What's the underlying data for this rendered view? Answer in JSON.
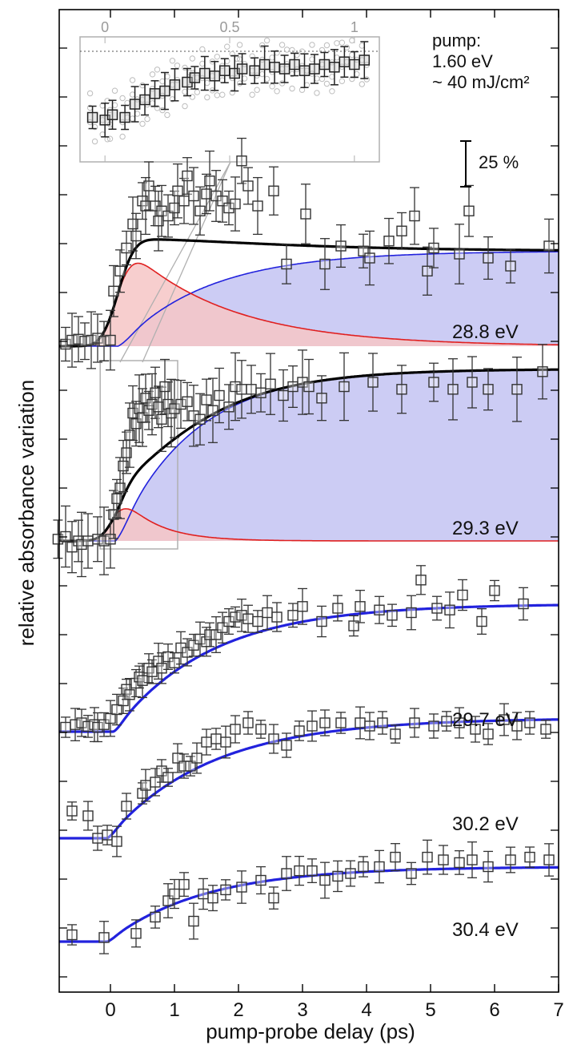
{
  "chart_data": {
    "type": "scatter",
    "xlabel": "pump-probe delay (ps)",
    "ylabel": "relative absorbance variation",
    "xlim": [
      -0.8,
      7
    ],
    "x_ticks": [
      "0",
      "1",
      "2",
      "3",
      "4",
      "5",
      "6",
      "7"
    ],
    "scale_bar_label": "25 %",
    "scale_bar_value_percent": 25,
    "pump_info": [
      "pump:",
      "1.60 eV",
      "~ 40 mJ/cm²"
    ],
    "colors": {
      "data": "#333333",
      "total_fit": "#000000",
      "fast_component": "#e02020",
      "fast_fill": "#f6c6c6",
      "slow_component": "#2222dd",
      "slow_fill": "#c9c9f3",
      "inset_frame": "#b0b0b0"
    },
    "series": [
      {
        "label": "28.8 eV",
        "fit": "two-component",
        "offset": 0,
        "t_rise": 0.12,
        "sigma": 0.2,
        "fast_amplitude": 1.07,
        "fast_decay": 1.6,
        "slow_amplitude": 0.95,
        "slow_time": 1.4,
        "points": [
          [
            -0.7,
            0.02
          ],
          [
            -0.6,
            0.06
          ],
          [
            -0.5,
            0.07
          ],
          [
            -0.4,
            0.05
          ],
          [
            -0.3,
            0.06
          ],
          [
            -0.2,
            0.08
          ],
          [
            -0.1,
            0.05
          ],
          [
            0.0,
            0.06
          ],
          [
            0.05,
            0.55
          ],
          [
            0.15,
            0.75
          ],
          [
            0.25,
            0.98
          ],
          [
            0.35,
            1.22
          ],
          [
            0.4,
            1.1
          ],
          [
            0.5,
            1.45
          ],
          [
            0.55,
            1.4
          ],
          [
            0.6,
            1.6
          ],
          [
            0.7,
            1.4
          ],
          [
            0.75,
            1.25
          ],
          [
            0.8,
            1.35
          ],
          [
            0.9,
            1.3
          ],
          [
            1.0,
            1.38
          ],
          [
            1.05,
            1.55
          ],
          [
            1.15,
            1.45
          ],
          [
            1.2,
            1.7
          ],
          [
            1.3,
            1.5
          ],
          [
            1.4,
            1.35
          ],
          [
            1.5,
            1.52
          ],
          [
            1.55,
            1.65
          ],
          [
            1.65,
            1.5
          ],
          [
            1.75,
            1.45
          ],
          [
            1.85,
            1.38
          ],
          [
            1.95,
            1.42
          ],
          [
            2.05,
            1.85
          ],
          [
            2.15,
            1.6
          ],
          [
            2.3,
            1.4
          ],
          [
            2.55,
            1.55
          ],
          [
            2.75,
            0.82
          ],
          [
            3.05,
            1.32
          ],
          [
            3.35,
            0.82
          ],
          [
            3.6,
            1.0
          ],
          [
            3.95,
            0.95
          ],
          [
            4.05,
            0.88
          ],
          [
            4.35,
            1.05
          ],
          [
            4.55,
            1.15
          ],
          [
            4.75,
            1.3
          ],
          [
            4.95,
            0.75
          ],
          [
            5.05,
            0.98
          ],
          [
            5.45,
            0.92
          ],
          [
            5.6,
            1.35
          ],
          [
            5.9,
            0.88
          ],
          [
            6.25,
            0.8
          ],
          [
            6.85,
            1.0
          ]
        ]
      },
      {
        "label": "29.3 eV",
        "fit": "two-component",
        "offset": 0,
        "t_rise": 0.08,
        "sigma": 0.18,
        "fast_amplitude": 0.6,
        "fast_decay": 0.55,
        "slow_amplitude": 1.95,
        "slow_time": 1.2,
        "points": [
          [
            -0.82,
            0.02
          ],
          [
            -0.7,
            0.05
          ],
          [
            -0.6,
            -0.07
          ],
          [
            -0.5,
            0.0
          ],
          [
            -0.45,
            -0.04
          ],
          [
            -0.35,
            0.0
          ],
          [
            -0.2,
            0.02
          ],
          [
            -0.1,
            0.0
          ],
          [
            0.0,
            0.02
          ],
          [
            0.05,
            0.3
          ],
          [
            0.1,
            0.48
          ],
          [
            0.15,
            0.6
          ],
          [
            0.2,
            0.85
          ],
          [
            0.25,
            1.0
          ],
          [
            0.3,
            1.2
          ],
          [
            0.35,
            1.45
          ],
          [
            0.4,
            1.33
          ],
          [
            0.45,
            1.5
          ],
          [
            0.5,
            1.4
          ],
          [
            0.55,
            1.62
          ],
          [
            0.6,
            1.48
          ],
          [
            0.65,
            1.55
          ],
          [
            0.7,
            1.68
          ],
          [
            0.75,
            1.52
          ],
          [
            0.8,
            1.38
          ],
          [
            0.85,
            1.75
          ],
          [
            0.9,
            1.55
          ],
          [
            0.95,
            1.45
          ],
          [
            1.0,
            1.5
          ],
          [
            1.1,
            1.55
          ],
          [
            1.2,
            1.58
          ],
          [
            1.3,
            1.42
          ],
          [
            1.4,
            1.38
          ],
          [
            1.5,
            1.6
          ],
          [
            1.6,
            1.48
          ],
          [
            1.7,
            1.65
          ],
          [
            1.85,
            1.52
          ],
          [
            1.95,
            1.75
          ],
          [
            2.05,
            1.72
          ],
          [
            2.2,
            1.72
          ],
          [
            2.35,
            1.68
          ],
          [
            2.5,
            1.78
          ],
          [
            2.7,
            1.65
          ],
          [
            2.85,
            1.75
          ],
          [
            3.0,
            1.8
          ],
          [
            3.1,
            1.75
          ],
          [
            3.3,
            1.62
          ],
          [
            3.65,
            1.75
          ],
          [
            4.1,
            1.8
          ],
          [
            4.55,
            1.72
          ],
          [
            5.05,
            1.8
          ],
          [
            5.35,
            1.72
          ],
          [
            5.65,
            1.8
          ],
          [
            5.9,
            1.72
          ],
          [
            6.35,
            1.72
          ],
          [
            6.75,
            1.92
          ]
        ]
      },
      {
        "label": "29.7 eV",
        "fit": "single",
        "offset": 0,
        "t_rise": 0.05,
        "sigma": 0.12,
        "slow_amplitude": 1.45,
        "slow_time": 1.5,
        "points": [
          [
            -0.7,
            0.05
          ],
          [
            -0.55,
            0.08
          ],
          [
            -0.45,
            0.1
          ],
          [
            -0.35,
            0.06
          ],
          [
            -0.25,
            0.08
          ],
          [
            -0.2,
            0.05
          ],
          [
            -0.1,
            0.08
          ],
          [
            0.0,
            0.15
          ],
          [
            0.1,
            0.25
          ],
          [
            0.2,
            0.35
          ],
          [
            0.25,
            0.48
          ],
          [
            0.3,
            0.42
          ],
          [
            0.4,
            0.55
          ],
          [
            0.45,
            0.62
          ],
          [
            0.5,
            0.58
          ],
          [
            0.6,
            0.72
          ],
          [
            0.65,
            0.68
          ],
          [
            0.75,
            0.8
          ],
          [
            0.8,
            0.72
          ],
          [
            0.9,
            0.85
          ],
          [
            1.0,
            0.78
          ],
          [
            1.1,
            0.95
          ],
          [
            1.2,
            0.9
          ],
          [
            1.3,
            0.98
          ],
          [
            1.4,
            1.05
          ],
          [
            1.5,
            1.02
          ],
          [
            1.55,
            1.1
          ],
          [
            1.65,
            1.1
          ],
          [
            1.75,
            1.18
          ],
          [
            1.85,
            1.25
          ],
          [
            1.95,
            1.3
          ],
          [
            2.05,
            1.32
          ],
          [
            2.15,
            1.28
          ],
          [
            2.3,
            1.25
          ],
          [
            2.45,
            1.35
          ],
          [
            2.6,
            1.3
          ],
          [
            2.85,
            1.32
          ],
          [
            3.0,
            1.42
          ],
          [
            3.3,
            1.25
          ],
          [
            3.55,
            1.4
          ],
          [
            3.8,
            1.2
          ],
          [
            3.9,
            1.42
          ],
          [
            4.2,
            1.38
          ],
          [
            4.4,
            1.32
          ],
          [
            4.7,
            1.35
          ],
          [
            4.85,
            1.72
          ],
          [
            5.1,
            1.4
          ],
          [
            5.3,
            1.38
          ],
          [
            5.5,
            1.55
          ],
          [
            5.8,
            1.25
          ],
          [
            6.0,
            1.6
          ],
          [
            6.45,
            1.45
          ]
        ]
      },
      {
        "label": "30.2 eV",
        "fit": "single",
        "offset": 0,
        "t_rise": -0.05,
        "sigma": 0.12,
        "slow_amplitude": 0.75,
        "slow_time": 1.6,
        "points": [
          [
            -0.6,
            0.17
          ],
          [
            -0.35,
            0.14
          ],
          [
            -0.2,
            0.0
          ],
          [
            -0.05,
            0.02
          ],
          [
            0.1,
            -0.02
          ],
          [
            0.25,
            0.2
          ],
          [
            0.5,
            0.28
          ],
          [
            0.55,
            0.33
          ],
          [
            0.7,
            0.35
          ],
          [
            0.8,
            0.42
          ],
          [
            0.9,
            0.38
          ],
          [
            1.05,
            0.5
          ],
          [
            1.15,
            0.45
          ],
          [
            1.25,
            0.45
          ],
          [
            1.35,
            0.5
          ],
          [
            1.5,
            0.6
          ],
          [
            1.65,
            0.62
          ],
          [
            1.8,
            0.6
          ],
          [
            1.95,
            0.68
          ],
          [
            2.15,
            0.72
          ],
          [
            2.35,
            0.68
          ],
          [
            2.55,
            0.62
          ],
          [
            2.75,
            0.58
          ],
          [
            2.95,
            0.67
          ],
          [
            3.15,
            0.7
          ],
          [
            3.35,
            0.72
          ],
          [
            3.6,
            0.72
          ],
          [
            3.9,
            0.72
          ],
          [
            4.05,
            0.7
          ],
          [
            4.25,
            0.72
          ],
          [
            4.45,
            0.65
          ],
          [
            4.75,
            0.72
          ],
          [
            5.05,
            0.7
          ],
          [
            5.25,
            0.73
          ],
          [
            5.45,
            0.72
          ],
          [
            5.7,
            0.68
          ],
          [
            5.9,
            0.65
          ],
          [
            6.15,
            0.74
          ],
          [
            6.35,
            0.7
          ],
          [
            6.55,
            0.72
          ],
          [
            6.8,
            0.68
          ]
        ]
      },
      {
        "label": "30.4 eV",
        "fit": "single",
        "offset": 0,
        "t_rise": -0.05,
        "sigma": 0.12,
        "slow_amplitude": 0.55,
        "slow_time": 1.5,
        "points": [
          [
            -0.6,
            0.05
          ],
          [
            -0.1,
            0.03
          ],
          [
            0.4,
            0.06
          ],
          [
            0.7,
            0.18
          ],
          [
            0.9,
            0.3
          ],
          [
            1.0,
            0.35
          ],
          [
            1.15,
            0.42
          ],
          [
            1.3,
            0.15
          ],
          [
            1.45,
            0.35
          ],
          [
            1.6,
            0.32
          ],
          [
            1.8,
            0.38
          ],
          [
            2.05,
            0.4
          ],
          [
            2.35,
            0.45
          ],
          [
            2.55,
            0.32
          ],
          [
            2.75,
            0.5
          ],
          [
            2.95,
            0.52
          ],
          [
            3.15,
            0.52
          ],
          [
            3.35,
            0.45
          ],
          [
            3.55,
            0.48
          ],
          [
            3.75,
            0.5
          ],
          [
            3.95,
            0.55
          ],
          [
            4.2,
            0.55
          ],
          [
            4.45,
            0.62
          ],
          [
            4.7,
            0.5
          ],
          [
            4.95,
            0.62
          ],
          [
            5.2,
            0.6
          ],
          [
            5.45,
            0.58
          ],
          [
            5.65,
            0.6
          ],
          [
            5.9,
            0.55
          ],
          [
            6.25,
            0.6
          ],
          [
            6.55,
            0.62
          ],
          [
            6.85,
            0.6
          ]
        ]
      }
    ],
    "inset": {
      "x_ticks": [
        "0",
        "0.5",
        "1"
      ],
      "xlim": [
        -0.1,
        1.1
      ],
      "points": [
        [
          -0.05,
          0.25
        ],
        [
          0.0,
          0.22
        ],
        [
          0.03,
          0.28
        ],
        [
          0.08,
          0.25
        ],
        [
          0.12,
          0.4
        ],
        [
          0.16,
          0.45
        ],
        [
          0.2,
          0.52
        ],
        [
          0.24,
          0.55
        ],
        [
          0.28,
          0.62
        ],
        [
          0.33,
          0.65
        ],
        [
          0.36,
          0.7
        ],
        [
          0.4,
          0.75
        ],
        [
          0.44,
          0.72
        ],
        [
          0.48,
          0.78
        ],
        [
          0.52,
          0.75
        ],
        [
          0.55,
          0.8
        ],
        [
          0.6,
          0.78
        ],
        [
          0.64,
          0.85
        ],
        [
          0.68,
          0.82
        ],
        [
          0.72,
          0.8
        ],
        [
          0.76,
          0.85
        ],
        [
          0.8,
          0.78
        ],
        [
          0.84,
          0.8
        ],
        [
          0.88,
          0.85
        ],
        [
          0.92,
          0.82
        ],
        [
          0.96,
          0.88
        ],
        [
          1.0,
          0.85
        ],
        [
          1.04,
          0.9
        ]
      ]
    }
  }
}
